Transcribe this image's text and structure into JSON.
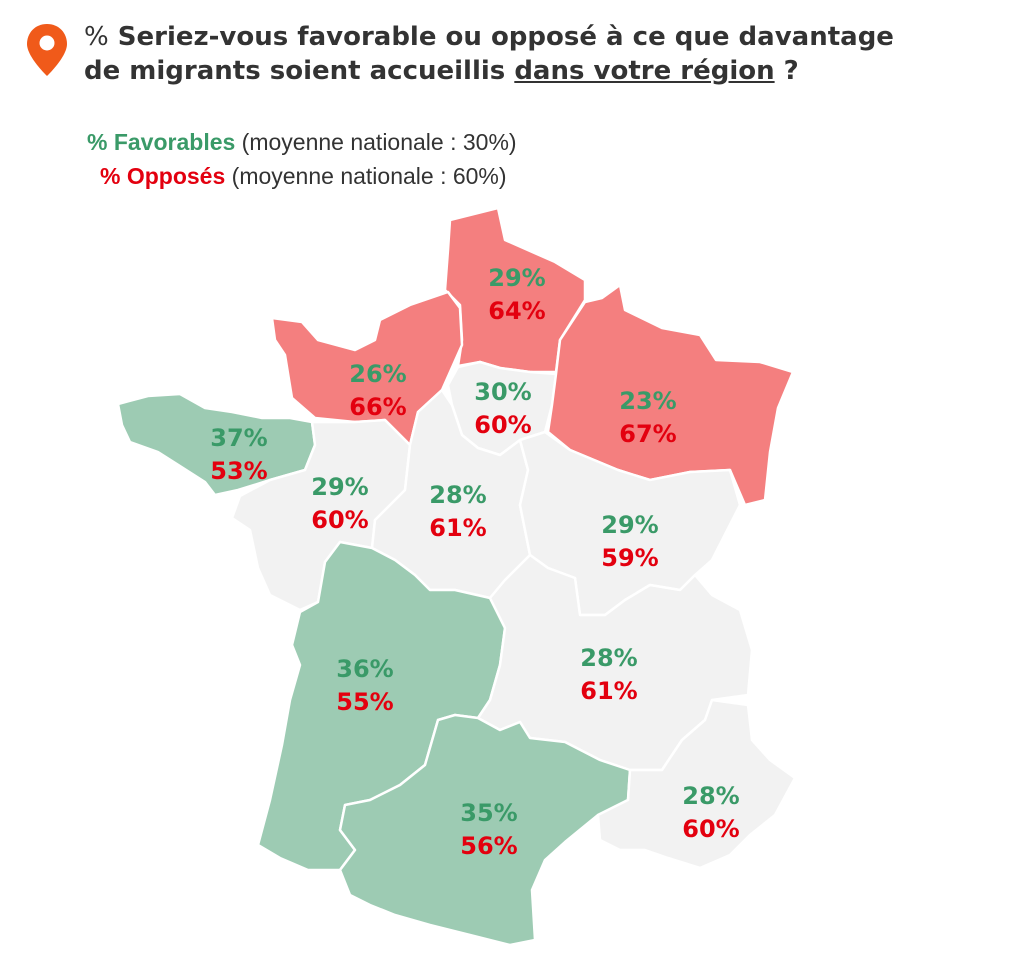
{
  "title": {
    "prefix": "%",
    "line1": "Seriez-vous favorable ou opposé à ce que davantage",
    "line2_a": "de migrants soient accueillis ",
    "line2_underlined": "dans votre région",
    "line2_end": " ?"
  },
  "legend": {
    "favorables": {
      "key": "% Favorables",
      "note": " (moyenne nationale : 30%)"
    },
    "opposes": {
      "key": "% Opposés",
      "note": " (moyenne nationale : 60%)"
    }
  },
  "colors": {
    "above_average_opposition": "#f47f7f",
    "average": "#f2f2f2",
    "above_average_favor": "#9dcbb3",
    "favorable_text": "#3a9a68",
    "opposed_text": "#e3000f",
    "pin": "#f05a1a"
  },
  "regions": [
    {
      "id": "hauts-de-france",
      "favorable": "29%",
      "opposed": "64%",
      "category": "above_average_opposition"
    },
    {
      "id": "normandie",
      "favorable": "26%",
      "opposed": "66%",
      "category": "above_average_opposition"
    },
    {
      "id": "ile-de-france",
      "favorable": "30%",
      "opposed": "60%",
      "category": "average"
    },
    {
      "id": "grand-est",
      "favorable": "23%",
      "opposed": "67%",
      "category": "above_average_opposition"
    },
    {
      "id": "bretagne",
      "favorable": "37%",
      "opposed": "53%",
      "category": "above_average_favor"
    },
    {
      "id": "pays-de-la-loire",
      "favorable": "29%",
      "opposed": "60%",
      "category": "average"
    },
    {
      "id": "centre-val-de-loire",
      "favorable": "28%",
      "opposed": "61%",
      "category": "average"
    },
    {
      "id": "bourgogne-franche-comte",
      "favorable": "29%",
      "opposed": "59%",
      "category": "average"
    },
    {
      "id": "nouvelle-aquitaine",
      "favorable": "36%",
      "opposed": "55%",
      "category": "above_average_favor"
    },
    {
      "id": "auvergne-rhone-alpes",
      "favorable": "28%",
      "opposed": "61%",
      "category": "average"
    },
    {
      "id": "occitanie",
      "favorable": "35%",
      "opposed": "56%",
      "category": "above_average_favor"
    },
    {
      "id": "provence-alpes-cote-dazur",
      "favorable": "28%",
      "opposed": "60%",
      "category": "average"
    }
  ]
}
